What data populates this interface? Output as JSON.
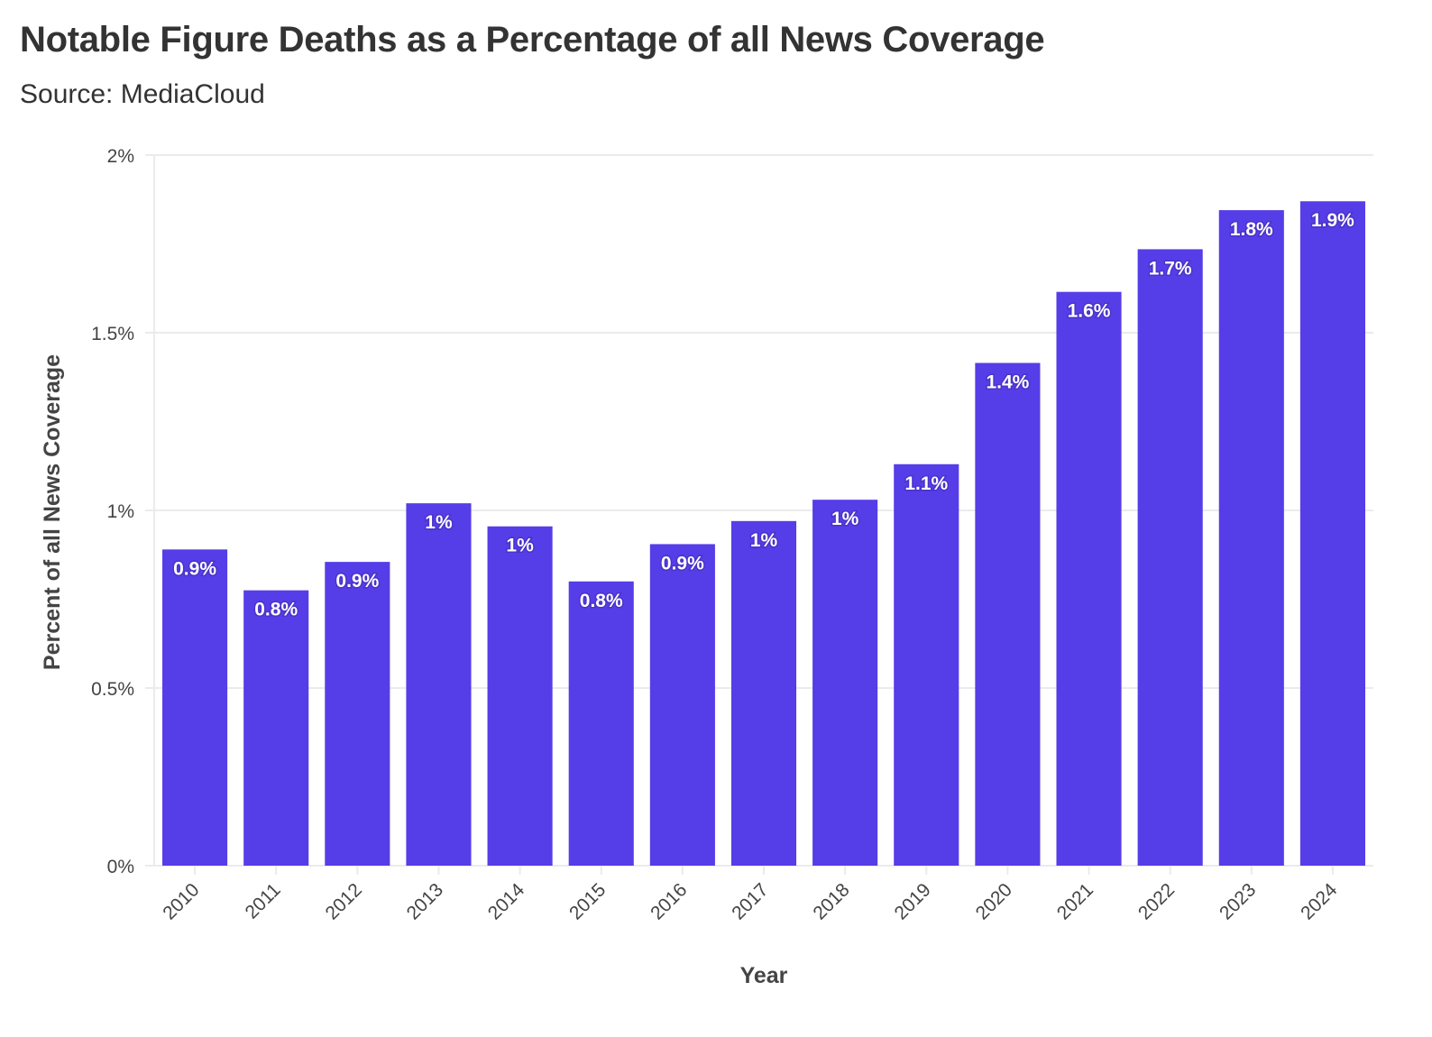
{
  "chart_data": {
    "type": "bar",
    "title": "Notable Figure Deaths as a Percentage of all News Coverage",
    "subtitle": "Source: MediaCloud",
    "xlabel": "Year",
    "ylabel": "Percent of all News Coverage",
    "categories": [
      "2010",
      "2011",
      "2012",
      "2013",
      "2014",
      "2015",
      "2016",
      "2017",
      "2018",
      "2019",
      "2020",
      "2021",
      "2022",
      "2023",
      "2024"
    ],
    "values": [
      0.89,
      0.775,
      0.855,
      1.02,
      0.955,
      0.8,
      0.905,
      0.97,
      1.03,
      1.13,
      1.415,
      1.615,
      1.735,
      1.845,
      1.87
    ],
    "data_labels": [
      "0.9%",
      "0.8%",
      "0.9%",
      "1%",
      "1%",
      "0.8%",
      "0.9%",
      "1%",
      "1%",
      "1.1%",
      "1.4%",
      "1.6%",
      "1.7%",
      "1.8%",
      "1.9%"
    ],
    "ylim": [
      0,
      2
    ],
    "yticks": [
      0,
      0.5,
      1,
      1.5,
      2
    ],
    "ytick_labels": [
      "0%",
      "0.5%",
      "1%",
      "1.5%",
      "2%"
    ],
    "grid": true,
    "colors": {
      "bar": "#553de8",
      "grid": "#ebebeb",
      "axis_text": "#444444"
    }
  }
}
